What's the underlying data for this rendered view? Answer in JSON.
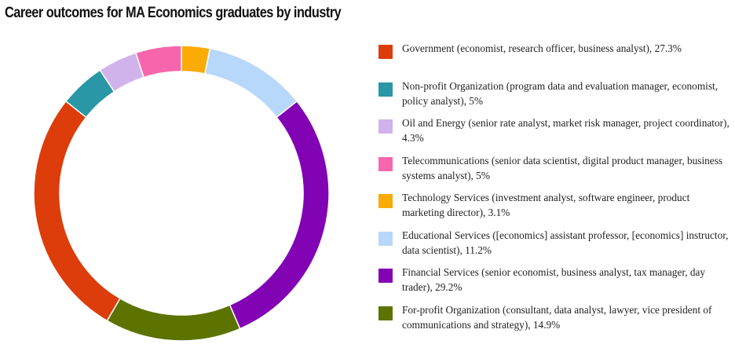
{
  "chart_data": {
    "type": "pie",
    "variant": "donut",
    "title": "Career outcomes for MA Economics graduates by industry",
    "start_angle_deg": 0,
    "direction": "clockwise",
    "slices": [
      {
        "name": "Government (economist, research officer, business analyst)",
        "value": 27.3,
        "value_label": "27.3%",
        "color": "#dc3d0b"
      },
      {
        "name": "Non-profit Organization (program data and evaluation manager, economist, policy analyst)",
        "value": 5,
        "value_label": "5%",
        "color": "#2a97a6"
      },
      {
        "name": "Oil and Energy (senior rate analyst, market risk manager, project coordinator)",
        "value": 4.3,
        "value_label": "4.3%",
        "color": "#d1b3ec"
      },
      {
        "name": "Telecommunications (senior data scientist, digital product manager, business systems analyst)",
        "value": 5,
        "value_label": "5%",
        "color": "#f766ac"
      },
      {
        "name": "Technology Services (investment analyst, software engineer, product marketing director)",
        "value": 3.1,
        "value_label": "3.1%",
        "color": "#faab05"
      },
      {
        "name": "Educational Services ([economics] assistant professor, [economics] instructor, data scientist)",
        "value": 11.2,
        "value_label": "11.2%",
        "color": "#b8d8fb"
      },
      {
        "name": "Financial Services (senior economist, business analyst, tax manager, day trader)",
        "value": 29.2,
        "value_label": "29.2%",
        "color": "#8203b4"
      },
      {
        "name": "For-profit Organization (consultant, data analyst, lawyer, vice president of communications and strategy)",
        "value": 14.9,
        "value_label": "14.9%",
        "color": "#5c7300"
      }
    ],
    "legend_position": "right",
    "draw_order": [
      "Technology Services",
      "Educational Services",
      "Financial Services",
      "For-profit Organization",
      "Government",
      "Non-profit Organization",
      "Oil and Energy",
      "Telecommunications"
    ]
  }
}
